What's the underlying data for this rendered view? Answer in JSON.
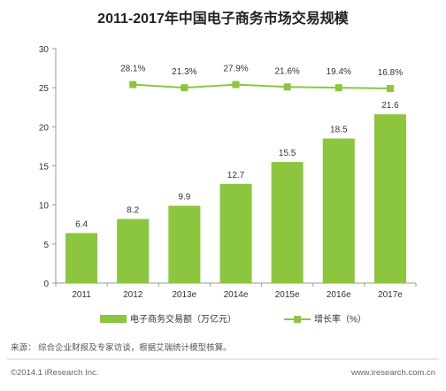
{
  "chart_data": {
    "type": "bar",
    "title": "2011-2017年中国电子商务市场交易规模",
    "categories": [
      "2011",
      "2012",
      "2013e",
      "2014e",
      "2015e",
      "2016e",
      "2017e"
    ],
    "ylim": [
      0,
      30
    ],
    "yticks": [
      0,
      5,
      10,
      15,
      20,
      25,
      30
    ],
    "series": [
      {
        "name": "电子商务交易额（万亿元）",
        "type": "bar",
        "values": [
          6.4,
          8.2,
          9.9,
          12.7,
          15.5,
          18.5,
          21.6
        ],
        "value_labels": [
          "6.4",
          "8.2",
          "9.9",
          "12.7",
          "15.5",
          "18.5",
          "21.6"
        ]
      },
      {
        "name": "增长率（%）",
        "type": "line",
        "values": [
          null,
          28.1,
          21.3,
          27.9,
          21.6,
          19.4,
          16.8
        ],
        "value_labels": [
          null,
          "28.1%",
          "21.3%",
          "27.9%",
          "21.6%",
          "19.4%",
          "16.8%"
        ]
      }
    ],
    "line_plot_y": [
      null,
      25.4,
      25.0,
      25.4,
      25.1,
      25.0,
      24.9
    ],
    "grid": false,
    "legend_position": "bottom",
    "colors": {
      "bar": "#8cc63f",
      "line": "#8cc63f",
      "text": "#333333"
    }
  },
  "footer": {
    "source": "来源： 综合企业财报及专家访谈，根据艾瑞统计模型核算。",
    "copyright": "©2014.1 iResearch Inc.",
    "website": "www.iresearch.com.cn"
  }
}
